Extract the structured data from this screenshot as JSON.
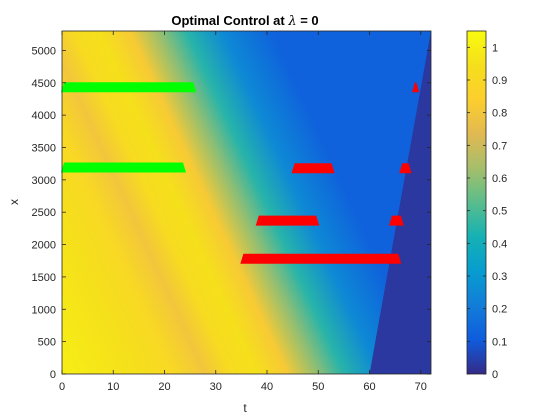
{
  "chart_data": {
    "type": "heatmap",
    "title_prefix": "Optimal Control at ",
    "title_symbol": "λ",
    "title_suffix": " = 0",
    "xlabel": "t",
    "ylabel": "x",
    "xlim": [
      0,
      72
    ],
    "ylim": [
      0,
      5300
    ],
    "xticks": [
      0,
      10,
      20,
      30,
      40,
      50,
      60,
      70
    ],
    "yticks": [
      0,
      500,
      1000,
      1500,
      2000,
      2500,
      3000,
      3500,
      4000,
      4500,
      5000
    ],
    "colorbar": {
      "ticks": [
        "0",
        "0.1",
        "0.2",
        "0.3",
        "0.4",
        "0.5",
        "0.6",
        "0.7",
        "0.8",
        "0.9",
        "1"
      ],
      "tick_values": [
        0,
        0.1,
        0.2,
        0.3,
        0.4,
        0.5,
        0.6,
        0.7,
        0.8,
        0.9,
        1.0
      ],
      "range": [
        0,
        1.05
      ],
      "colormap": "parula"
    },
    "field": {
      "description_stops_along_t_at_bottom": [
        {
          "t": 0,
          "value": 1.0
        },
        {
          "t": 14,
          "value": 0.95
        },
        {
          "t": 22,
          "value": 0.9
        },
        {
          "t": 28,
          "value": 0.8
        },
        {
          "t": 33,
          "value": 0.92
        },
        {
          "t": 38,
          "value": 0.95
        },
        {
          "t": 44,
          "value": 0.82
        },
        {
          "t": 50,
          "value": 0.6
        },
        {
          "t": 55,
          "value": 0.45
        },
        {
          "t": 62,
          "value": 0.25
        },
        {
          "t": 72,
          "value": 0.12
        }
      ],
      "front_skew_t_per_x": -0.0058,
      "dark_region": {
        "t_at_x0": 60,
        "t_at_xmax": 72,
        "value": 0.03
      }
    },
    "green_segments": [
      {
        "t_start": 0,
        "t_end": 26,
        "x": 4430,
        "color": "#00ff00"
      },
      {
        "t_start": 0,
        "t_end": 24,
        "x": 3190,
        "color": "#00ff00"
      }
    ],
    "red_segments": [
      {
        "t_start": 68.5,
        "t_end": 69.5,
        "x": 4430,
        "color": "#ff0000"
      },
      {
        "t_start": 45,
        "t_end": 53,
        "x": 3180,
        "color": "#ff0000"
      },
      {
        "t_start": 66,
        "t_end": 68,
        "x": 3180,
        "color": "#ff0000"
      },
      {
        "t_start": 38,
        "t_end": 50,
        "x": 2370,
        "color": "#ff0000"
      },
      {
        "t_start": 64,
        "t_end": 66.5,
        "x": 2370,
        "color": "#ff0000"
      },
      {
        "t_start": 35,
        "t_end": 66,
        "x": 1780,
        "color": "#ff0000"
      }
    ]
  }
}
